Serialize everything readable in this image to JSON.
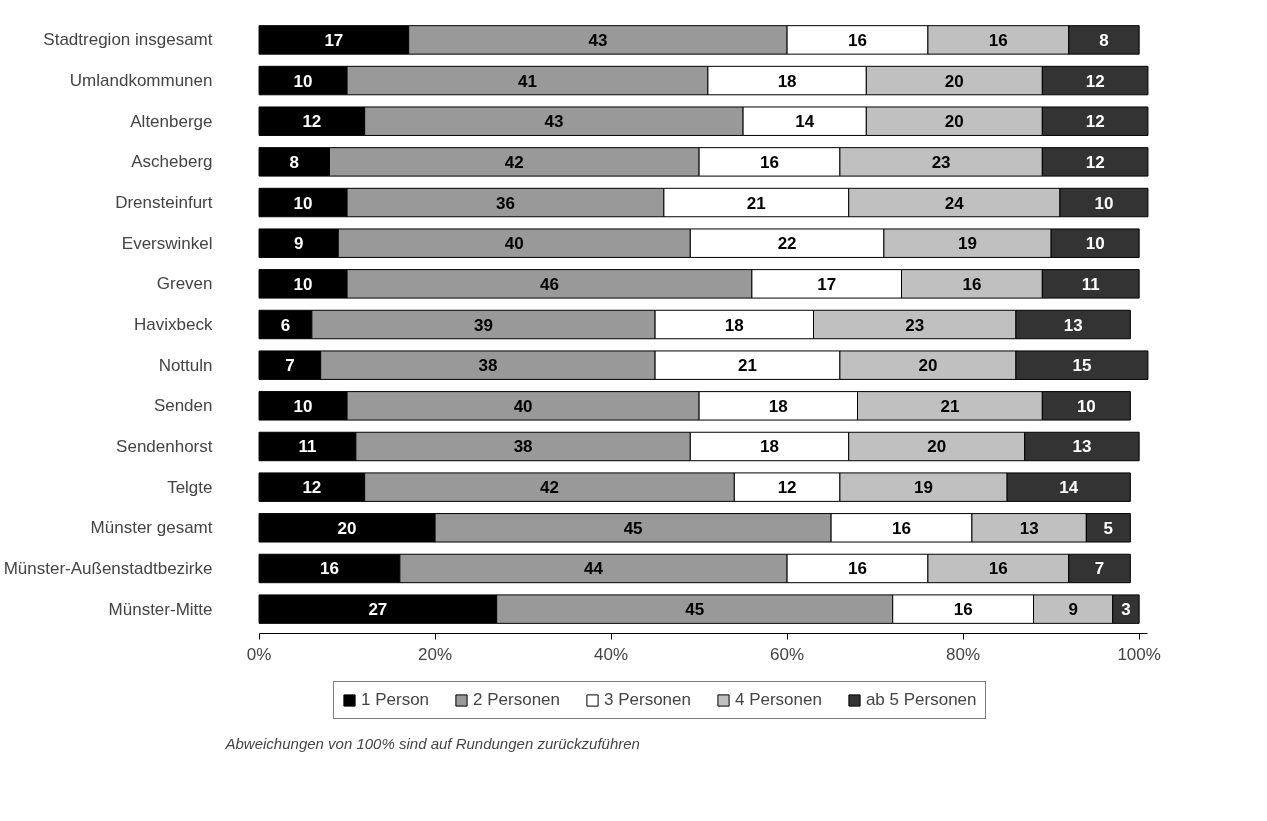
{
  "chart_data": {
    "type": "bar",
    "orientation": "horizontal",
    "stacked": true,
    "categories": [
      "Stadtregion insgesamt",
      "Umlandkommunen",
      "Altenberge",
      "Ascheberg",
      "Drensteinfurt",
      "Everswinkel",
      "Greven",
      "Havixbeck",
      "Nottuln",
      "Senden",
      "Sendenhorst",
      "Telgte",
      "Münster gesamt",
      "Münster-Außenstadtbezirke",
      "Münster-Mitte"
    ],
    "series": [
      {
        "name": "1 Person",
        "color": "#000000",
        "values": [
          17,
          10,
          12,
          8,
          10,
          9,
          10,
          6,
          7,
          10,
          11,
          12,
          20,
          16,
          27
        ],
        "value_labels": [
          "17",
          "10",
          "12",
          "8",
          "10",
          "9",
          "10",
          "6",
          "7",
          "10",
          "11",
          "12",
          "20",
          "16",
          "27"
        ]
      },
      {
        "name": "2 Personen",
        "color": "#999999",
        "values": [
          43,
          41,
          43,
          42,
          36,
          40,
          46,
          39,
          38,
          40,
          38,
          42,
          45,
          44,
          45
        ],
        "value_labels": [
          "43",
          "41",
          "43",
          "42",
          "36",
          "40",
          "46",
          "39",
          "38",
          "40",
          "38",
          "42",
          "45",
          "44",
          "45"
        ]
      },
      {
        "name": "3 Personen",
        "color": "#ffffff",
        "values": [
          16,
          18,
          14,
          16,
          21,
          22,
          17,
          18,
          21,
          18,
          18,
          12,
          16,
          16,
          16
        ],
        "value_labels": [
          "16",
          "18",
          "14",
          "16",
          "21",
          "22",
          "17",
          "18",
          "21",
          "18",
          "18",
          "12",
          "16",
          "16",
          "16"
        ]
      },
      {
        "name": "4 Personen",
        "color": "#c0c0c0",
        "values": [
          16,
          20,
          20,
          23,
          24,
          19,
          16,
          23,
          20,
          21,
          20,
          19,
          13,
          16,
          9
        ],
        "value_labels": [
          "16",
          "20",
          "20",
          "23",
          "24",
          "19",
          "16",
          "23",
          "20",
          "21",
          "20",
          "19",
          "13",
          "16",
          "9"
        ]
      },
      {
        "name": "ab 5 Personen",
        "color": "#333333",
        "values": [
          8,
          12,
          12,
          12,
          10,
          10,
          11,
          13,
          15,
          10,
          13,
          14,
          5,
          7,
          3
        ],
        "value_labels": [
          "8",
          "12",
          "12",
          "12",
          "10",
          "10",
          "11",
          "13",
          "15",
          "10",
          "13",
          "14",
          "5",
          "7",
          "3"
        ]
      }
    ],
    "xlim": [
      0,
      101
    ],
    "xticks": [
      {
        "value": 0,
        "label": "0%"
      },
      {
        "value": 20,
        "label": "20%"
      },
      {
        "value": 40,
        "label": "40%"
      },
      {
        "value": 60,
        "label": "60%"
      },
      {
        "value": 80,
        "label": "80%"
      },
      {
        "value": 100,
        "label": "100%"
      }
    ],
    "legend": "bottom",
    "annotations": [
      "Abweichungen von 100% sind auf Rundungen zurückzuführen"
    ]
  }
}
